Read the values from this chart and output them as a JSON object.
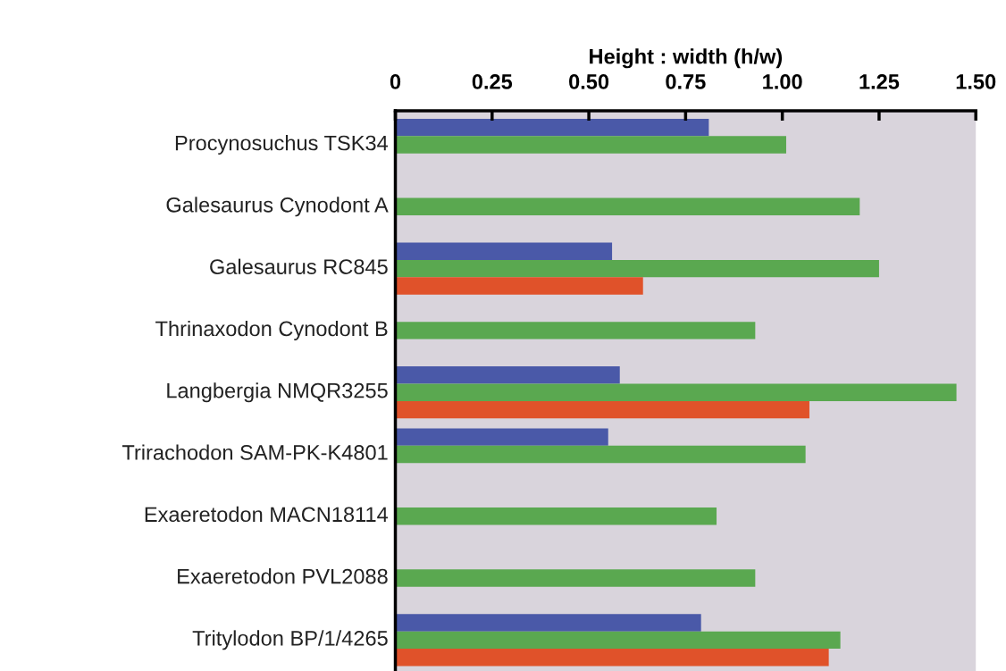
{
  "chart_data": {
    "type": "bar",
    "orientation": "horizontal",
    "xlabel": "Height : width (h/w)",
    "categories": [
      "Procynosuchus TSK34",
      "Galesaurus Cynodont A",
      "Galesaurus RC845",
      "Thrinaxodon Cynodont B",
      "Langbergia NMQR3255",
      "Trirachodon SAM-PK-K4801",
      "Exaeretodon MACN18114",
      "Exaeretodon PVL2088",
      "Tritylodon BP/1/4265"
    ],
    "series": [
      {
        "color": "#4a59a8",
        "values": [
          0.81,
          null,
          0.56,
          null,
          0.58,
          0.55,
          null,
          null,
          0.79
        ]
      },
      {
        "color": "#5aa850",
        "values": [
          1.01,
          1.2,
          1.25,
          0.93,
          1.45,
          1.06,
          0.83,
          0.93,
          1.15
        ]
      },
      {
        "color": "#e0522a",
        "values": [
          null,
          null,
          0.64,
          null,
          1.07,
          null,
          null,
          null,
          1.12
        ]
      }
    ],
    "xlim": [
      0,
      1.5
    ],
    "xticks": [
      0,
      {
        "value": 0.25,
        "label": "0.25"
      },
      {
        "value": 0.5,
        "label": "0.50"
      },
      {
        "value": 0.75,
        "label": "0.75"
      },
      {
        "value": 1,
        "label": "1.00"
      },
      {
        "value": 1.25,
        "label": "1.25"
      },
      {
        "value": 1.5,
        "label": "1.50"
      }
    ],
    "grid": false,
    "legend": false
  }
}
